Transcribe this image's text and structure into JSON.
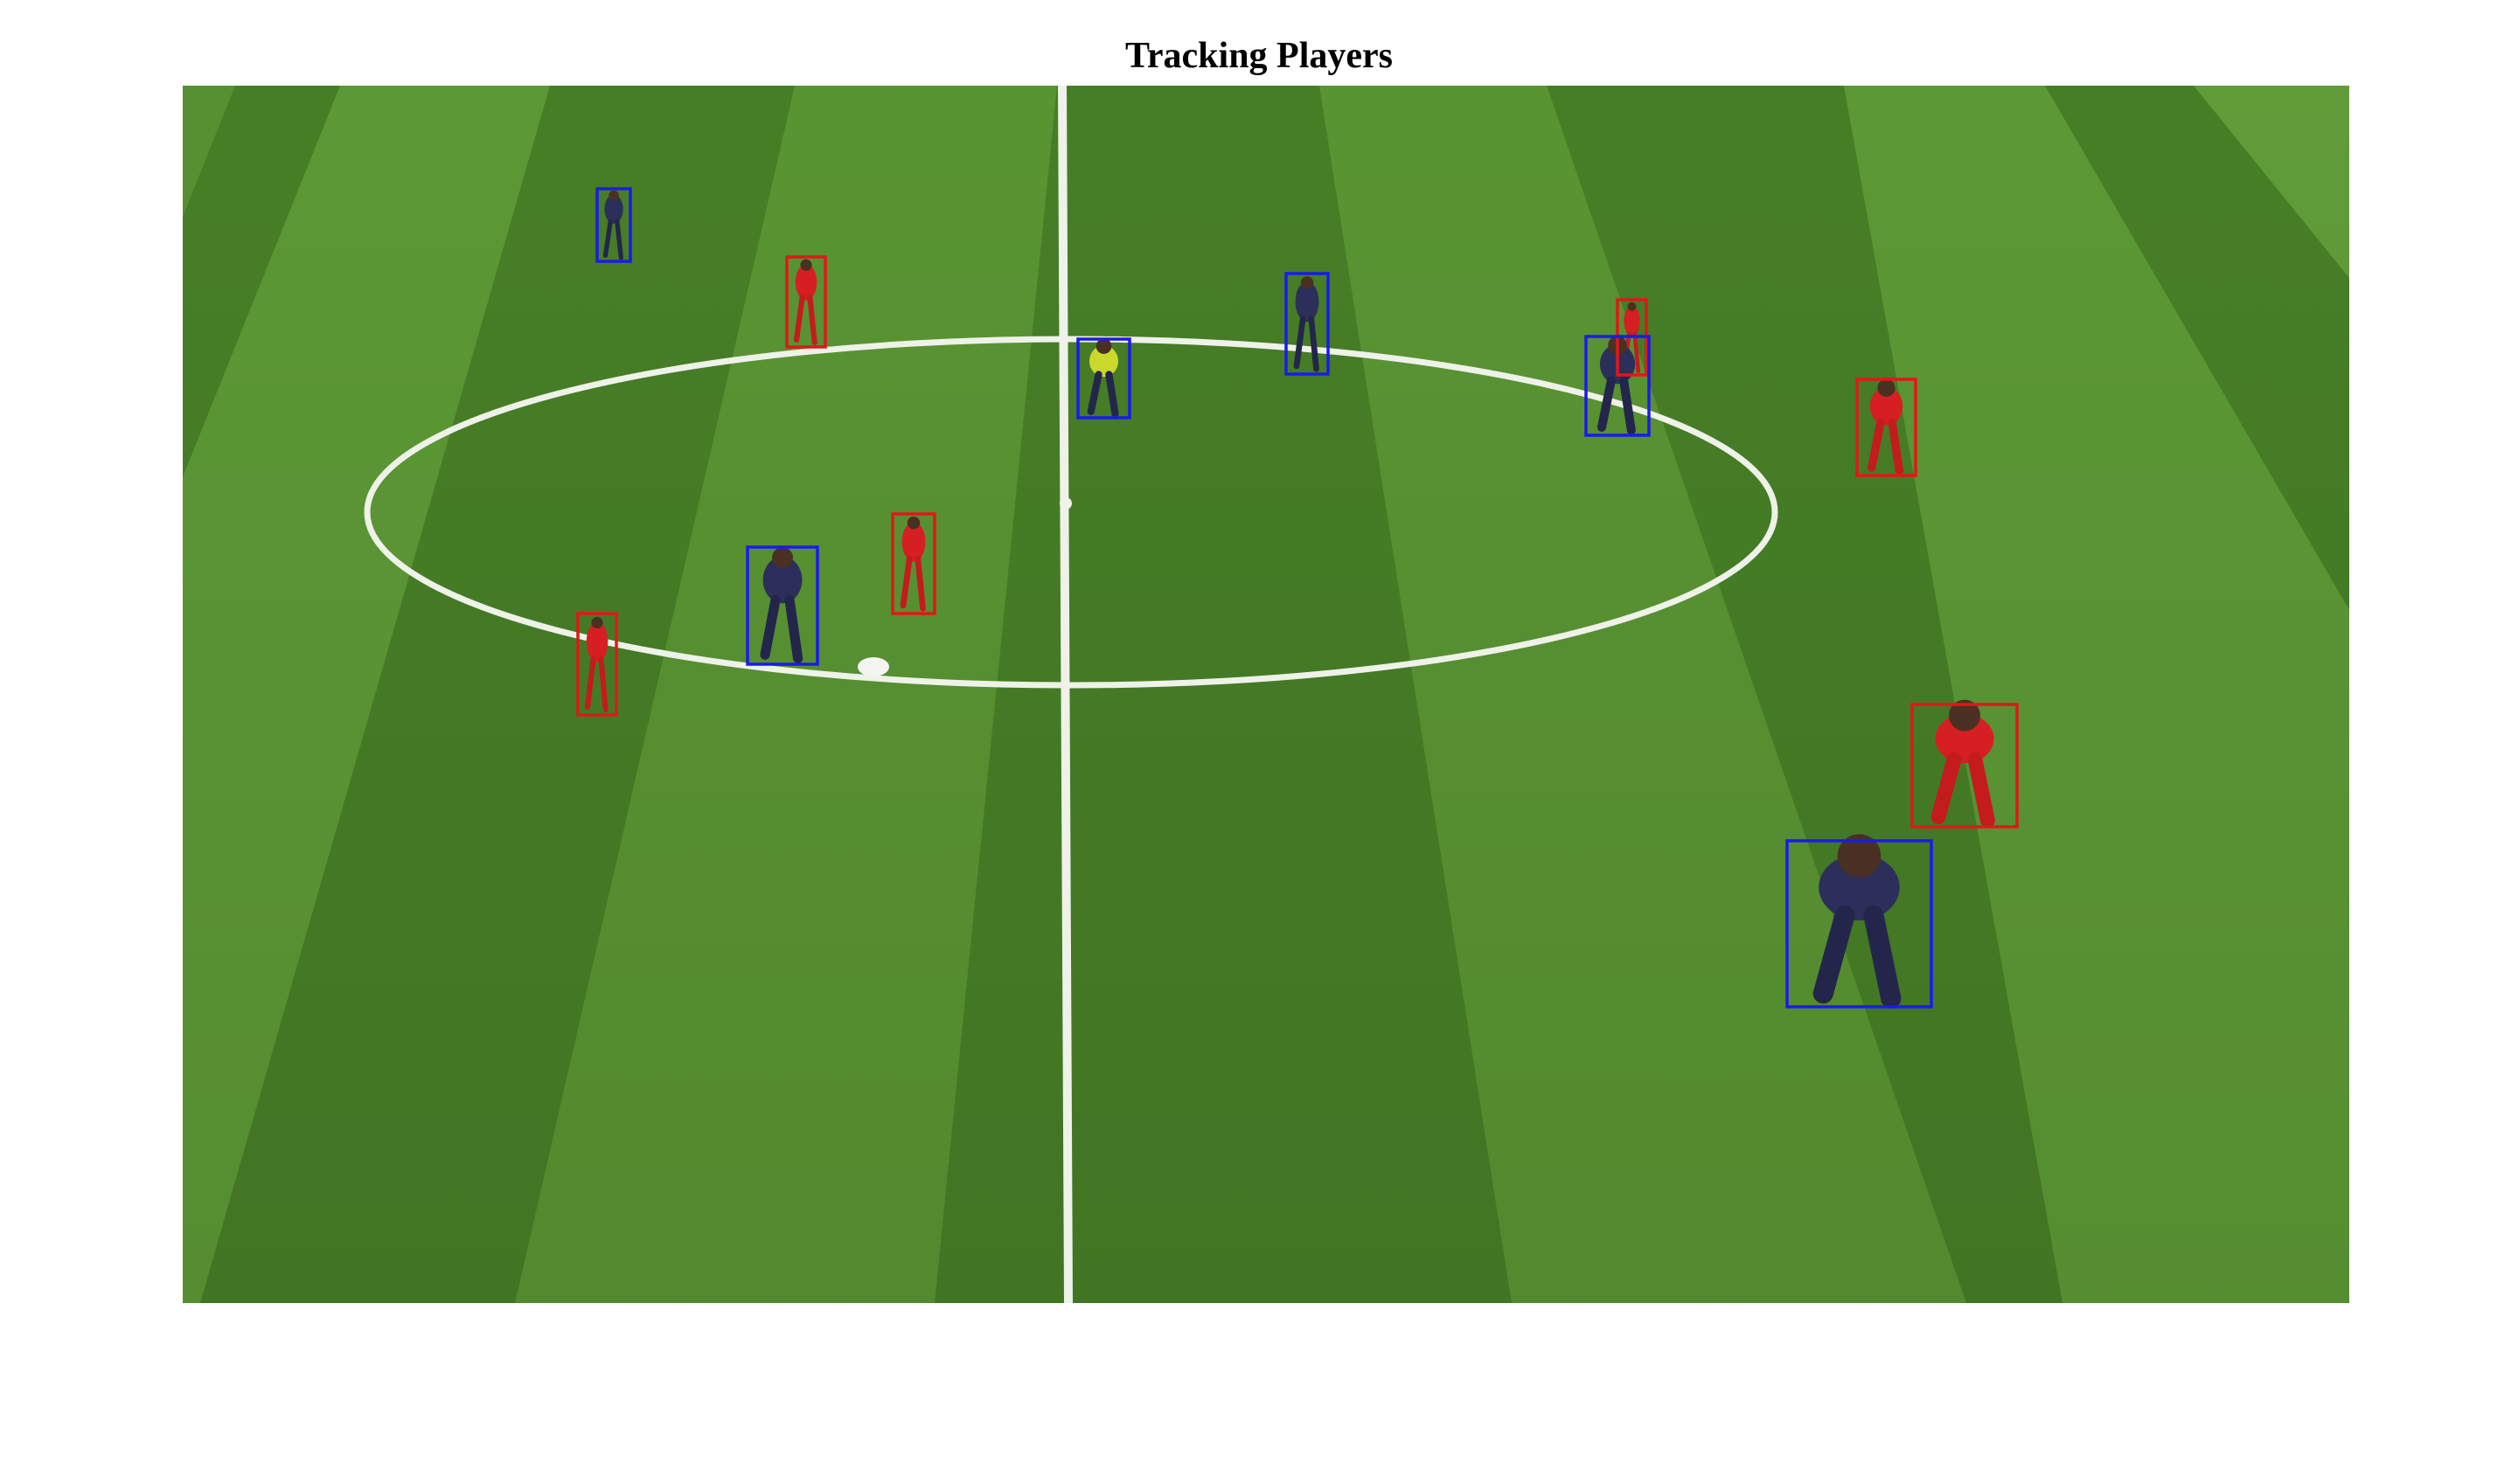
{
  "title": "Tracking Players",
  "colors": {
    "team_a_box": "#e01818",
    "team_b_box": "#1a1aee",
    "pitch_light": "#5e9a34",
    "pitch_dark": "#3f7a22",
    "line": "#f2f5ee"
  },
  "detections": [
    {
      "team": "blue",
      "label": "player"
    },
    {
      "team": "red",
      "label": "player"
    },
    {
      "team": "blue",
      "label": "referee"
    },
    {
      "team": "blue",
      "label": "player"
    },
    {
      "team": "red",
      "label": "player"
    },
    {
      "team": "blue",
      "label": "player"
    },
    {
      "team": "red",
      "label": "player"
    },
    {
      "team": "blue",
      "label": "player"
    },
    {
      "team": "red",
      "label": "player"
    },
    {
      "team": "red",
      "label": "player"
    },
    {
      "team": "red",
      "label": "player"
    },
    {
      "team": "blue",
      "label": "player"
    }
  ]
}
